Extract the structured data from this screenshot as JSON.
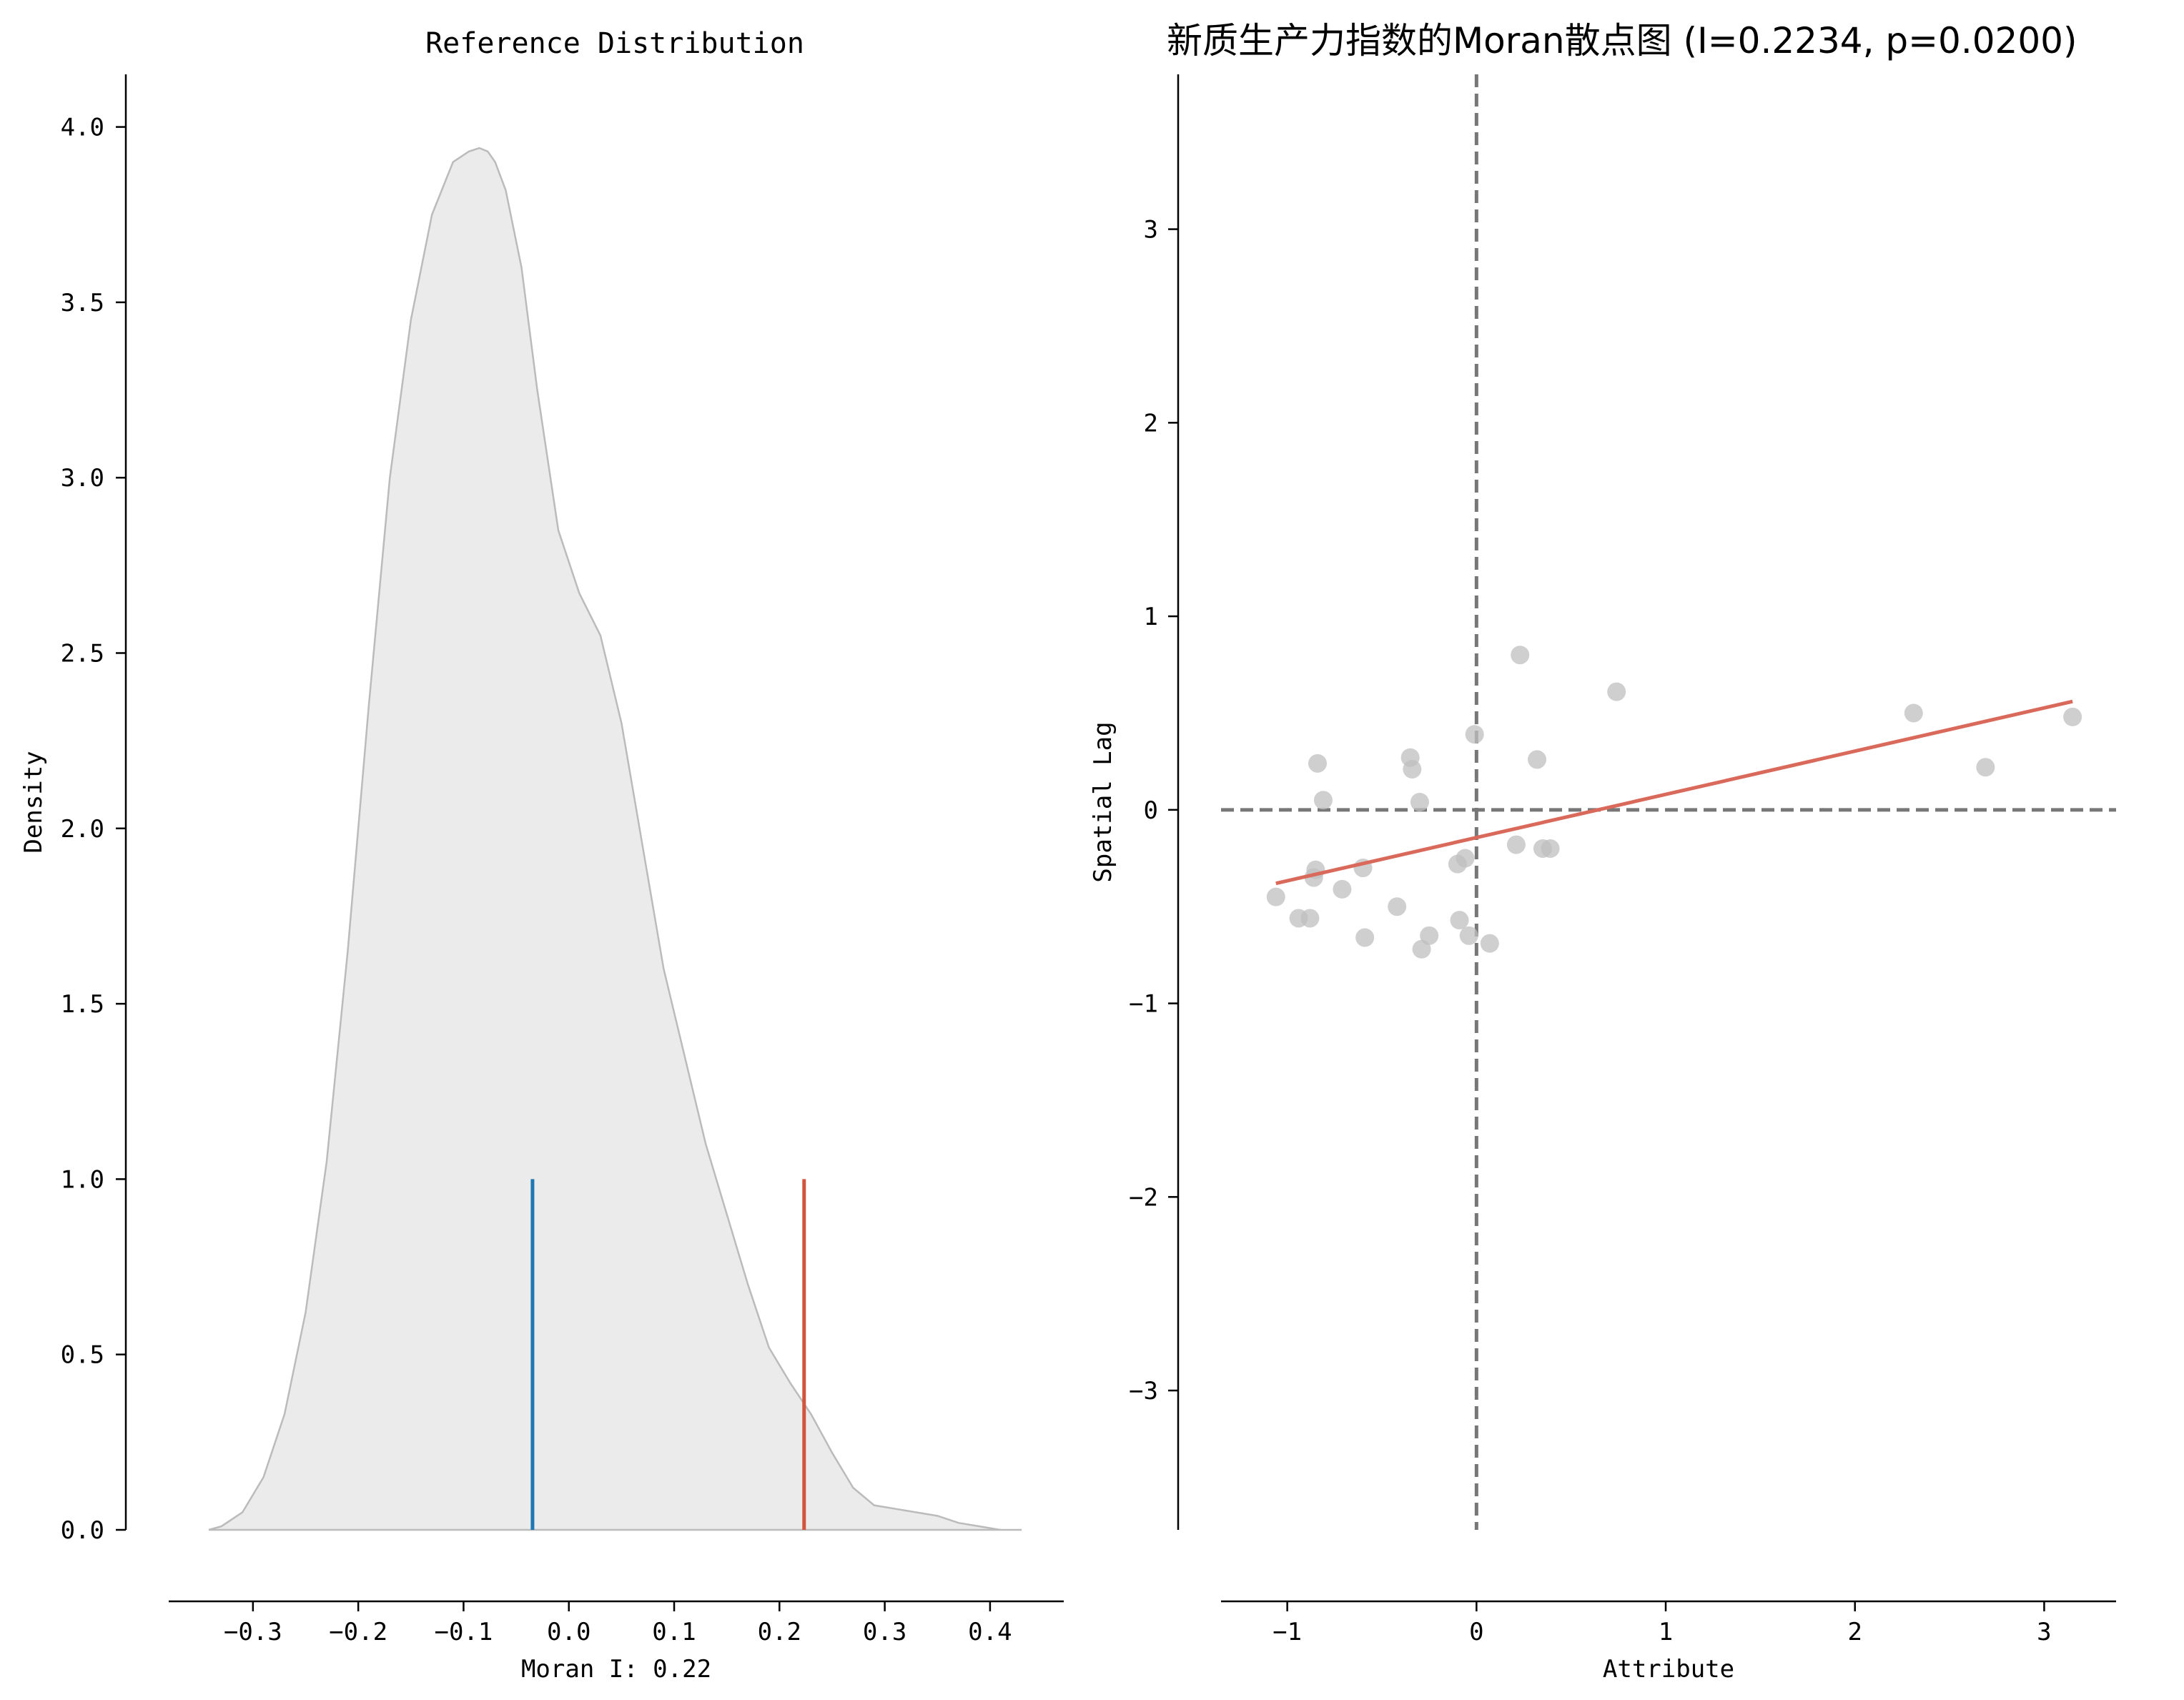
{
  "chart_data": [
    {
      "type": "area",
      "title": "Reference Distribution",
      "xlabel": "Moran I: 0.22",
      "ylabel": "Density",
      "xlim": [
        -0.38,
        0.47
      ],
      "ylim": [
        0,
        4.15
      ],
      "xticks": [
        -0.3,
        -0.2,
        -0.1,
        0.0,
        0.1,
        0.2,
        0.3,
        0.4
      ],
      "xtick_labels": [
        "−0.3",
        "−0.2",
        "−0.1",
        "0.0",
        "0.1",
        "0.2",
        "0.3",
        "0.4"
      ],
      "yticks": [
        0.0,
        0.5,
        1.0,
        1.5,
        2.0,
        2.5,
        3.0,
        3.5,
        4.0
      ],
      "ytick_labels": [
        "0.0",
        "0.5",
        "1.0",
        "1.5",
        "2.0",
        "2.5",
        "3.0",
        "3.5",
        "4.0"
      ],
      "density": {
        "x": [
          -0.342,
          -0.33,
          -0.31,
          -0.29,
          -0.27,
          -0.25,
          -0.23,
          -0.21,
          -0.19,
          -0.17,
          -0.15,
          -0.13,
          -0.11,
          -0.095,
          -0.085,
          -0.077,
          -0.07,
          -0.06,
          -0.045,
          -0.03,
          -0.01,
          0.01,
          0.03,
          0.05,
          0.07,
          0.09,
          0.11,
          0.13,
          0.15,
          0.17,
          0.19,
          0.21,
          0.23,
          0.25,
          0.27,
          0.29,
          0.31,
          0.33,
          0.35,
          0.37,
          0.39,
          0.41,
          0.43
        ],
        "y": [
          0.0,
          0.01,
          0.05,
          0.15,
          0.33,
          0.62,
          1.05,
          1.65,
          2.35,
          3.0,
          3.45,
          3.75,
          3.9,
          3.93,
          3.94,
          3.93,
          3.9,
          3.82,
          3.6,
          3.25,
          2.85,
          2.67,
          2.55,
          2.3,
          1.95,
          1.6,
          1.35,
          1.1,
          0.9,
          0.7,
          0.52,
          0.42,
          0.33,
          0.22,
          0.12,
          0.07,
          0.06,
          0.05,
          0.04,
          0.02,
          0.01,
          0.0,
          0.0
        ],
        "fill": "#ebebeb",
        "stroke": "#bbbbbb"
      },
      "markers": [
        {
          "name": "expected",
          "x": -0.0345,
          "height": 1.0,
          "color": "#1f77b4"
        },
        {
          "name": "observed",
          "x": 0.2234,
          "height": 1.0,
          "color": "#d1553c"
        }
      ]
    },
    {
      "type": "scatter",
      "title": "新质生产力指数的Moran散点图 (I=0.2234, p=0.0200)",
      "xlabel": "Attribute",
      "ylabel": "Spatial Lag",
      "xlim": [
        -1.35,
        3.38
      ],
      "ylim": [
        -3.72,
        3.8
      ],
      "xticks": [
        -1,
        0,
        1,
        2,
        3
      ],
      "xtick_labels": [
        "−1",
        "0",
        "1",
        "2",
        "3"
      ],
      "yticks": [
        -3,
        -2,
        -1,
        0,
        1,
        2,
        3
      ],
      "ytick_labels": [
        "−3",
        "−2",
        "−1",
        "0",
        "1",
        "2",
        "3"
      ],
      "point_color": "#bfbfbf",
      "points": [
        [
          -1.06,
          -0.45
        ],
        [
          -0.94,
          -0.56
        ],
        [
          -0.88,
          -0.56
        ],
        [
          -0.86,
          -0.35
        ],
        [
          -0.85,
          -0.31
        ],
        [
          -0.84,
          0.24
        ],
        [
          -0.81,
          0.05
        ],
        [
          -0.71,
          -0.41
        ],
        [
          -0.6,
          -0.3
        ],
        [
          -0.59,
          -0.66
        ],
        [
          -0.42,
          -0.5
        ],
        [
          -0.35,
          0.27
        ],
        [
          -0.34,
          0.21
        ],
        [
          -0.3,
          0.04
        ],
        [
          -0.29,
          -0.72
        ],
        [
          -0.25,
          -0.65
        ],
        [
          -0.1,
          -0.28
        ],
        [
          -0.09,
          -0.57
        ],
        [
          -0.06,
          -0.25
        ],
        [
          -0.04,
          -0.65
        ],
        [
          -0.01,
          0.39
        ],
        [
          0.07,
          -0.69
        ],
        [
          0.21,
          -0.18
        ],
        [
          0.23,
          0.8
        ],
        [
          0.32,
          0.26
        ],
        [
          0.35,
          -0.2
        ],
        [
          0.39,
          -0.2
        ],
        [
          0.74,
          0.61
        ],
        [
          2.31,
          0.5
        ],
        [
          2.69,
          0.22
        ],
        [
          3.15,
          0.48
        ]
      ],
      "fit_line": {
        "x": [
          -1.06,
          3.15
        ],
        "y": [
          -0.38,
          0.56
        ],
        "color": "#d9695a"
      },
      "reference_lines": {
        "x": 0,
        "y": 0,
        "color": "#777777",
        "style": "dashed"
      }
    }
  ]
}
